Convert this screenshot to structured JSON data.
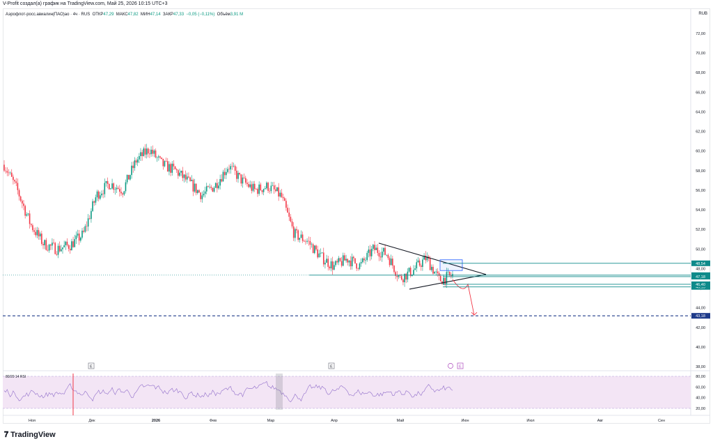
{
  "header": {
    "attribution": "V-Profit создал(а) график на TradingView.com, Май 25, 2026 10:15 UTC+3"
  },
  "legend": {
    "symbol": "Аэрофлот-росс.авиалин(ПАО)ао · 4ч · RUS",
    "open_label": "ОТКР",
    "open": "47,29",
    "high_label": "МАКС",
    "high": "47,82",
    "low_label": "МИН",
    "low": "47,14",
    "close_label": "ЗАКР",
    "close": "47,33",
    "change": "−0,05 (−0,11%)",
    "volume_label": "Объём",
    "volume": "3,91 M"
  },
  "currency": "RUB",
  "rsi_label": "80/20 14 RSI",
  "footer": {
    "brand": "TradingView",
    "logo_icon": "tradingview-logo-icon"
  },
  "colors": {
    "up": "#089981",
    "down": "#f23645",
    "blue": "#2962ff",
    "teal_line": "#0e8a8a",
    "rsi_fill": "#f3e5f5",
    "rsi_line": "#7e57c2"
  },
  "chart_data": {
    "type": "candlestick",
    "title": "",
    "ylim": [
      38,
      74
    ],
    "y_ticks": [
      "72,00",
      "70,00",
      "68,00",
      "66,00",
      "64,00",
      "62,00",
      "60,00",
      "58,00",
      "56,00",
      "54,00",
      "52,00",
      "50,00",
      "48,00",
      "46,00",
      "44,00",
      "42,00",
      "40,00",
      "38,00"
    ],
    "x_ticks": [
      "Ноя",
      "Дек",
      "2026",
      "Фев",
      "Мар",
      "Апр",
      "Май",
      "Июн",
      "Июл",
      "Авг",
      "Сен"
    ],
    "price_path": [
      [
        "Ноя",
        58.6
      ],
      [
        "Ноя",
        56.0
      ],
      [
        "Ноя",
        52.5
      ],
      [
        "Ноя",
        50.5
      ],
      [
        "Ноя",
        50.0
      ],
      [
        "Ноя",
        50.4
      ],
      [
        "Дек",
        51.5
      ],
      [
        "Дек",
        55.5
      ],
      [
        "Дек",
        56.7
      ],
      [
        "Дек",
        56.0
      ],
      [
        "Дек",
        59.0
      ],
      [
        "Дек",
        60.2
      ],
      [
        "2026",
        58.6
      ],
      [
        "2026",
        58.0
      ],
      [
        "2026",
        56.8
      ],
      [
        "2026",
        55.5
      ],
      [
        "Фев",
        56.5
      ],
      [
        "Фев",
        58.5
      ],
      [
        "Фев",
        57.0
      ],
      [
        "Фев",
        56.0
      ],
      [
        "Мар",
        56.4
      ],
      [
        "Мар",
        55.4
      ],
      [
        "Мар",
        51.5
      ],
      [
        "Мар",
        50.8
      ],
      [
        "Апр",
        49.2
      ],
      [
        "Апр",
        48.2
      ],
      [
        "Апр",
        49.0
      ],
      [
        "Апр",
        48.3
      ],
      [
        "Апр",
        50.0
      ],
      [
        "Май",
        49.5
      ],
      [
        "Май",
        47.0
      ],
      [
        "Май",
        47.8
      ],
      [
        "Май",
        49.1
      ],
      [
        "Май",
        46.8
      ],
      [
        "Май",
        47.33
      ]
    ],
    "levels": [
      {
        "label": "48,54",
        "value": 48.54,
        "style": "teal"
      },
      {
        "label": "47,33",
        "value": 47.33,
        "style": "teal-current"
      },
      {
        "label": "46,13",
        "value": 46.13,
        "style": "teal"
      },
      {
        "label": "47,18",
        "value": 47.18,
        "style": "teal"
      },
      {
        "label": "46,40",
        "value": 46.4,
        "style": "teal"
      },
      {
        "label": "43,18",
        "value": 43.18,
        "style": "blue-dashed"
      }
    ],
    "triangle": {
      "upper_start": 50.6,
      "lower_start": 45.9,
      "apex": 47.4
    },
    "forecast_target": 43.18,
    "rsi": {
      "levels": [
        "80,00",
        "60,00",
        "40,00",
        "20,00"
      ],
      "upper_band": 80,
      "lower_band": 20
    },
    "event_markers": [
      "E",
      "E",
      "E"
    ]
  }
}
